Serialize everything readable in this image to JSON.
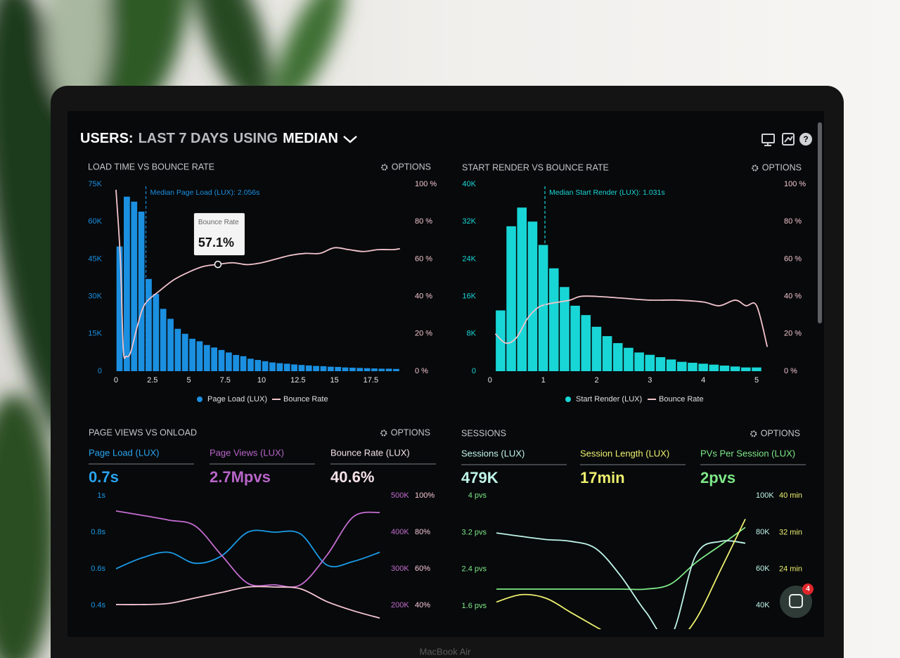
{
  "header": {
    "title_parts": [
      "USERS:",
      "LAST 7 DAYS",
      "USING",
      "MEDIAN"
    ]
  },
  "panels": [
    {
      "title": "LOAD TIME VS BOUNCE RATE",
      "options": "OPTIONS",
      "chart": {
        "type": "combo",
        "xlim": [
          -0.24,
          19.8
        ],
        "xticks": [
          0,
          2.5,
          5,
          7.5,
          10,
          12.5,
          15,
          17.5
        ],
        "ylim": [
          0,
          75000
        ],
        "yticks": [
          0,
          {
            "value": 15000,
            "label": "15K"
          },
          {
            "value": 30000,
            "label": "30K"
          },
          {
            "value": 45000,
            "label": "45K"
          },
          {
            "value": 60000,
            "label": "60K"
          },
          {
            "value": 75000,
            "label": "75K"
          }
        ],
        "y2lim": [
          0,
          100
        ],
        "y2ticks": [
          {
            "value": 0,
            "label": "0 %"
          },
          {
            "value": 20,
            "label": "20 %"
          },
          {
            "value": 40,
            "label": "40 %"
          },
          {
            "value": 60,
            "label": "60 %"
          },
          {
            "value": 80,
            "label": "80 %"
          },
          {
            "value": 100,
            "label": "100 %"
          }
        ],
        "bins": [
          0,
          0.5,
          1,
          1.5,
          2,
          2.5,
          3,
          3.5,
          4,
          4.5,
          5,
          5.5,
          6,
          6.5,
          7,
          7.5,
          8,
          8.5,
          9,
          9.5,
          10,
          10.5,
          11,
          11.5,
          12,
          12.5,
          13,
          13.5,
          14,
          14.5,
          15,
          15.5,
          16,
          16.5,
          17,
          17.5,
          18,
          18.5,
          19,
          19.5
        ],
        "series": [
          {
            "name": "Page Load (LUX)",
            "type": "bar",
            "color": "#1b8fe0",
            "values": [
              50000,
              70000,
              68000,
              64000,
              37000,
              31000,
              25000,
              21000,
              17000,
              15000,
              13000,
              12000,
              10500,
              9500,
              8500,
              7500,
              6500,
              6000,
              5000,
              4500,
              4000,
              3500,
              3200,
              3000,
              2700,
              2500,
              2300,
              2100,
              2000,
              1800,
              1700,
              1500,
              1400,
              1300,
              1200,
              1100,
              1000,
              1000,
              900
            ]
          },
          {
            "name": "Bounce Rate",
            "type": "line",
            "color": "#f2c4cc",
            "axis": "y2",
            "x": [
              0,
              0.3,
              0.5,
              0.7,
              1,
              1.5,
              2,
              3,
              4,
              5,
              6,
              7,
              8,
              9,
              10,
              11,
              12,
              13,
              14,
              15,
              16,
              17,
              18,
              19,
              19.5
            ],
            "values": [
              97,
              60,
              12,
              8,
              10,
              25,
              36,
              43,
              49,
              53,
              56,
              57.1,
              58,
              57,
              58,
              60,
              62,
              63,
              63,
              66,
              65,
              64,
              65,
              65,
              65.5
            ]
          }
        ],
        "median": {
          "value": 2.056,
          "label": "Median Page Load (LUX): 2.056s"
        },
        "tooltip": {
          "title": "Bounce Rate",
          "x": 7,
          "value": 57.1,
          "label": "57.1%"
        }
      }
    },
    {
      "title": "START RENDER VS BOUNCE RATE",
      "options": "OPTIONS",
      "chart": {
        "type": "combo",
        "xlim": [
          -0.09,
          5.21
        ],
        "xticks": [
          0,
          1,
          2,
          3,
          4,
          5
        ],
        "ylim": [
          0,
          40000
        ],
        "yticks": [
          0,
          {
            "value": 8000,
            "label": "8K"
          },
          {
            "value": 16000,
            "label": "16K"
          },
          {
            "value": 24000,
            "label": "24K"
          },
          {
            "value": 32000,
            "label": "32K"
          },
          {
            "value": 40000,
            "label": "40K"
          }
        ],
        "y2lim": [
          0,
          100
        ],
        "y2ticks": [
          {
            "value": 0,
            "label": "0 %"
          },
          {
            "value": 20,
            "label": "20 %"
          },
          {
            "value": 40,
            "label": "40 %"
          },
          {
            "value": 60,
            "label": "60 %"
          },
          {
            "value": 80,
            "label": "80 %"
          },
          {
            "value": 100,
            "label": "100 %"
          }
        ],
        "bins": [
          0.1,
          0.3,
          0.5,
          0.7,
          0.9,
          1.1,
          1.3,
          1.5,
          1.7,
          1.9,
          2.1,
          2.3,
          2.5,
          2.7,
          2.9,
          3.1,
          3.3,
          3.5,
          3.7,
          3.9,
          4.1,
          4.3,
          4.5,
          4.7,
          4.9,
          5.1
        ],
        "series": [
          {
            "name": "Start Render (LUX)",
            "type": "bar",
            "color": "#19d6d6",
            "values": [
              13000,
              31000,
              35000,
              32000,
              27000,
              22000,
              18000,
              14000,
              12000,
              9500,
              7500,
              6000,
              5000,
              4000,
              3500,
              3000,
              2500,
              2000,
              1800,
              1600,
              1400,
              1200,
              1000,
              800,
              800
            ]
          },
          {
            "name": "Bounce Rate",
            "type": "line",
            "color": "#f2c4cc",
            "axis": "y2",
            "x": [
              0.1,
              0.3,
              0.5,
              0.7,
              0.9,
              1.1,
              1.3,
              1.5,
              1.7,
              2,
              2.5,
              3,
              3.5,
              4,
              4.3,
              4.6,
              4.8,
              5,
              5.2
            ],
            "values": [
              20,
              15,
              18,
              28,
              34,
              36,
              37,
              38,
              40,
              40,
              39,
              38,
              38,
              37,
              35,
              38,
              35,
              35,
              13
            ]
          }
        ],
        "median": {
          "value": 1.031,
          "label": "Median Start Render (LUX): 1.031s"
        }
      }
    },
    {
      "title": "PAGE VIEWS VS ONLOAD",
      "options": "OPTIONS",
      "stats": [
        {
          "label": "Page Load (LUX)",
          "value": "0.7s",
          "color": "#2aa3ef"
        },
        {
          "label": "Page Views (LUX)",
          "value": "2.7Mpvs",
          "color": "#b864c8"
        },
        {
          "label": "Bounce Rate (LUX)",
          "value": "40.6%",
          "color": "#f6e2e8"
        }
      ],
      "chart": {
        "type": "line",
        "xlim": [
          0,
          10
        ],
        "x": [
          0,
          1,
          2,
          3,
          4,
          5,
          6,
          7,
          8,
          9,
          10
        ],
        "ylim": [
          0.3,
          1
        ],
        "yticks": [
          {
            "value": 0.4,
            "label": "0.4s"
          },
          {
            "value": 0.6,
            "label": "0.6s"
          },
          {
            "value": 0.8,
            "label": "0.8s"
          },
          {
            "value": 1,
            "label": "1s"
          }
        ],
        "y2lim": [
          150000,
          500000
        ],
        "y2ticks": [
          {
            "value": 200000,
            "label": "200K"
          },
          {
            "value": 300000,
            "label": "300K"
          },
          {
            "value": 400000,
            "label": "400K"
          },
          {
            "value": 500000,
            "label": "500K"
          }
        ],
        "y3lim": [
          30,
          100
        ],
        "y3ticks": [
          {
            "value": 40,
            "label": "40%"
          },
          {
            "value": 60,
            "label": "60%"
          },
          {
            "value": 80,
            "label": "80%"
          },
          {
            "value": 100,
            "label": "100%"
          }
        ],
        "series": [
          {
            "color": "#1b9ae6",
            "values": [
              0.6,
              0.66,
              0.69,
              0.63,
              0.67,
              0.8,
              0.8,
              0.79,
              0.62,
              0.64,
              0.69
            ]
          },
          {
            "color": "#c46ccf",
            "axis": "y2",
            "values": [
              458000,
              446000,
              433000,
              417000,
              337000,
              260000,
              256000,
              256000,
              337000,
              442000,
              454000
            ]
          },
          {
            "color": "#f6c6d2",
            "axis": "y3",
            "values": [
              40.4,
              40.4,
              41,
              44,
              47,
              50,
              50,
              49,
              42,
              37,
              33
            ]
          }
        ]
      }
    },
    {
      "title": "SESSIONS",
      "options": "OPTIONS",
      "stats": [
        {
          "label": "Sessions (LUX)",
          "value": "479K",
          "color": "#bff5e6"
        },
        {
          "label": "Session Length (LUX)",
          "value": "17min",
          "color": "#eef06e"
        },
        {
          "label": "PVs Per Session (LUX)",
          "value": "2pvs",
          "color": "#7ee887"
        }
      ],
      "chart": {
        "type": "line",
        "xlim": [
          0,
          10
        ],
        "x": [
          0,
          1,
          2,
          3,
          4,
          5,
          6,
          7,
          8,
          9,
          10
        ],
        "ylim": [
          1.1,
          4
        ],
        "yticks": [
          {
            "value": 1.6,
            "label": "1.6 pvs"
          },
          {
            "value": 2.4,
            "label": "2.4 pvs"
          },
          {
            "value": 3.2,
            "label": "3.2 pvs"
          },
          {
            "value": 4,
            "label": "4 pvs"
          }
        ],
        "y2lim": [
          27000,
          100000
        ],
        "y2ticks": [
          {
            "value": 40000,
            "label": "40K"
          },
          {
            "value": 60000,
            "label": "60K"
          },
          {
            "value": 80000,
            "label": "80K"
          },
          {
            "value": 100000,
            "label": "100K"
          }
        ],
        "y3lim": [
          11,
          40
        ],
        "y3ticks": [
          {
            "value": 24,
            "label": "24 min"
          },
          {
            "value": 32,
            "label": "32 min"
          },
          {
            "value": 40,
            "label": "40 min"
          }
        ],
        "series": [
          {
            "color": "#7ee887",
            "values": [
              1.97,
              1.97,
              1.97,
              1.97,
              1.97,
              1.97,
              1.97,
              2.08,
              2.54,
              2.92,
              3.31
            ]
          },
          {
            "color": "#bff5e6",
            "axis": "y2",
            "values": [
              79600,
              77700,
              76000,
              75000,
              71000,
              56000,
              36500,
              23000,
              67000,
              75000,
              74000
            ]
          },
          {
            "color": "#eef06e",
            "axis": "y3",
            "values": [
              16.9,
              18.5,
              17.7,
              14.6,
              11.5,
              8.5,
              5.4,
              6.9,
              13,
              23.8,
              34.9
            ]
          }
        ]
      }
    }
  ],
  "chat_badge": 4,
  "device_label": "MacBook Air"
}
